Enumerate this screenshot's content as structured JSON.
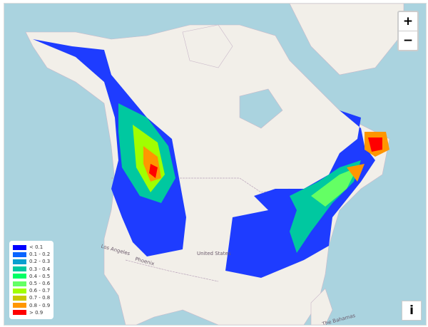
{
  "controls": {
    "zoom_in": "+",
    "zoom_out": "−",
    "info": "i"
  },
  "colors": {
    "ocean": "#aad3df",
    "land": "#f2efe9"
  },
  "legend": [
    {
      "label": "< 0.1",
      "color": "#0000ff"
    },
    {
      "label": "0.1 - 0.2",
      "color": "#0a64ff"
    },
    {
      "label": "0.2 - 0.3",
      "color": "#0a9fd0"
    },
    {
      "label": "0.3 - 0.4",
      "color": "#00c8a0"
    },
    {
      "label": "0.4 - 0.5",
      "color": "#00ff64"
    },
    {
      "label": "0.5 - 0.6",
      "color": "#64ff64"
    },
    {
      "label": "0.6 - 0.7",
      "color": "#a0ff00"
    },
    {
      "label": "0.7 - 0.8",
      "color": "#c8c800"
    },
    {
      "label": "0.8 - 0.9",
      "color": "#ff9600"
    },
    {
      "label": "> 0.9",
      "color": "#ff0000"
    }
  ],
  "map_labels": {
    "la": "Los Angeles",
    "phx": "Phoenix",
    "us": "United States",
    "bahamas": "The Bahamas"
  }
}
